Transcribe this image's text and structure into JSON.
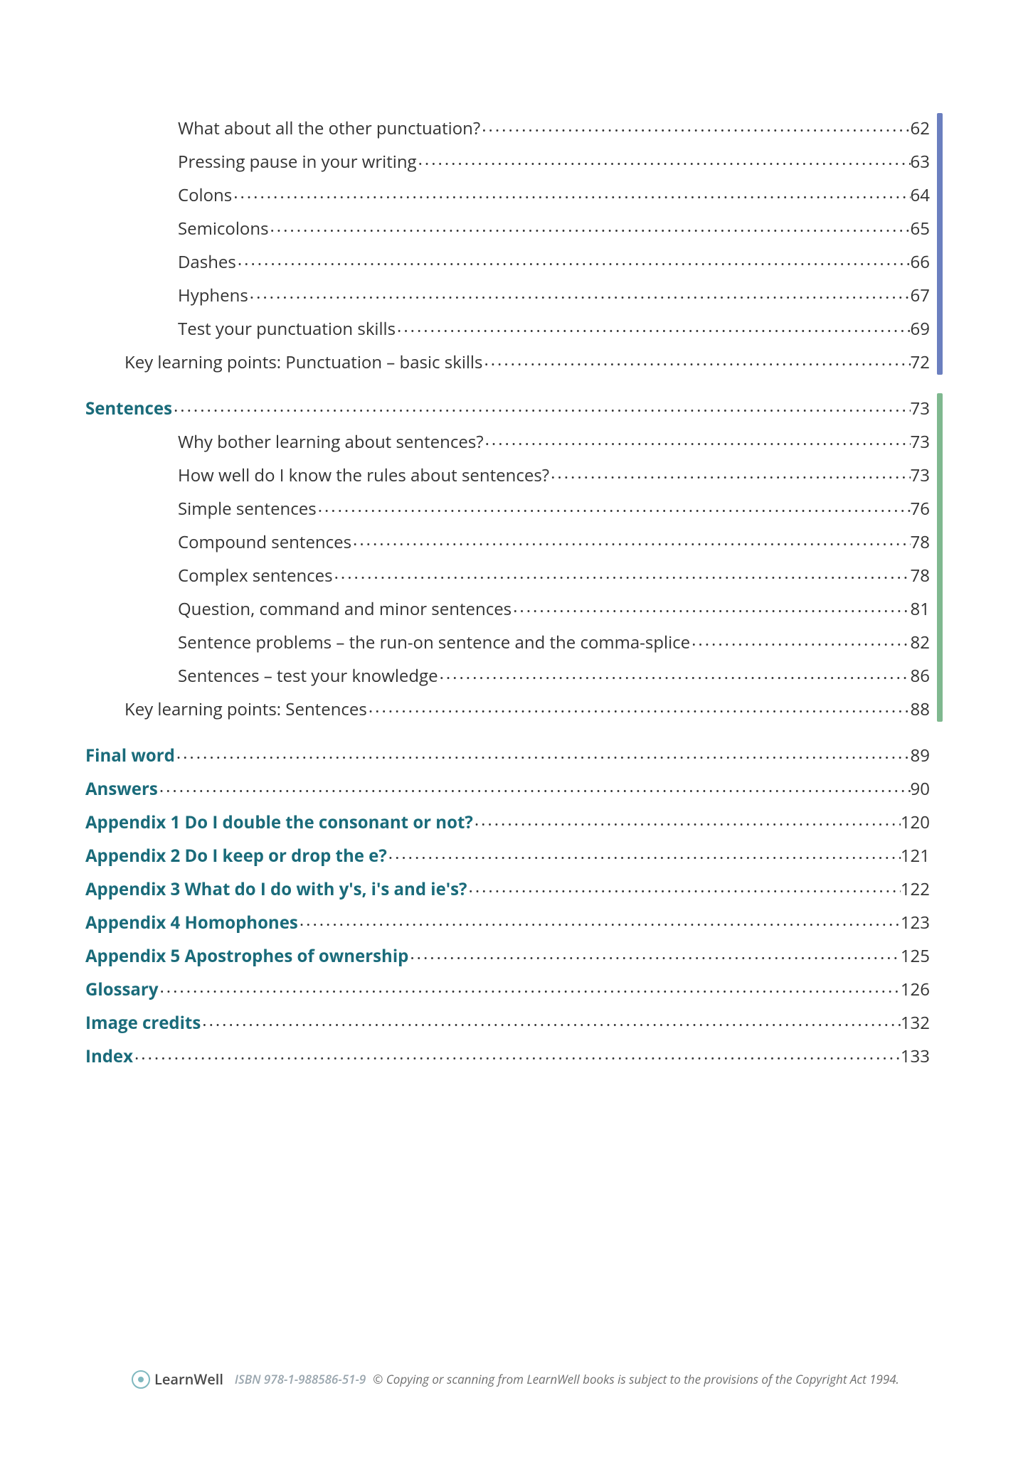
{
  "colors": {
    "bar_blue": "#6b7fbf",
    "bar_green": "#7fb88f",
    "heading_teal": "#1a6b7a",
    "body_text": "#333333",
    "footer_gray": "#9aa6ae"
  },
  "toc": {
    "group_punctuation": {
      "bar_color": "#6b7fbf",
      "items": [
        {
          "indent": 2,
          "label": "What about all the other punctuation?",
          "page": "62"
        },
        {
          "indent": 2,
          "label": "Pressing pause in your writing",
          "page": "63"
        },
        {
          "indent": 2,
          "label": "Colons",
          "page": "64"
        },
        {
          "indent": 2,
          "label": "Semicolons",
          "page": "65"
        },
        {
          "indent": 2,
          "label": "Dashes",
          "page": "66"
        },
        {
          "indent": 2,
          "label": "Hyphens",
          "page": "67"
        },
        {
          "indent": 2,
          "label": "Test your punctuation skills",
          "page": "69"
        },
        {
          "indent": 1,
          "label": "Key learning points: Punctuation – basic skills",
          "page": "72"
        }
      ]
    },
    "group_sentences": {
      "bar_color": "#7fb88f",
      "heading": {
        "label": "Sentences",
        "page": "73"
      },
      "items": [
        {
          "indent": 2,
          "label": "Why bother learning about sentences?",
          "page": "73"
        },
        {
          "indent": 2,
          "label": "How well do I know the rules about sentences?",
          "page": "73"
        },
        {
          "indent": 2,
          "label": "Simple sentences",
          "page": "76"
        },
        {
          "indent": 2,
          "label": "Compound sentences",
          "page": "78"
        },
        {
          "indent": 2,
          "label": "Complex sentences",
          "page": "78"
        },
        {
          "indent": 2,
          "label": "Question, command and minor sentences",
          "page": "81"
        },
        {
          "indent": 2,
          "label": "Sentence problems – the run-on sentence and the comma-splice",
          "page": "82"
        },
        {
          "indent": 2,
          "label": "Sentences – test your knowledge",
          "page": "86"
        },
        {
          "indent": 1,
          "label": "Key learning points: Sentences",
          "page": "88"
        }
      ]
    },
    "rest": [
      {
        "label": "Final word",
        "page": "89"
      },
      {
        "label": "Answers",
        "page": "90"
      },
      {
        "label": "Appendix 1  Do I double the consonant or not?",
        "page": "120"
      },
      {
        "label": "Appendix 2  Do I keep or drop the e?",
        "page": "121"
      },
      {
        "label": "Appendix 3  What do I do with y's, i's and ie's?",
        "page": "122"
      },
      {
        "label": "Appendix 4  Homophones",
        "page": "123"
      },
      {
        "label": "Appendix 5  Apostrophes of ownership",
        "page": "125"
      },
      {
        "label": "Glossary",
        "page": "126"
      },
      {
        "label": "Image credits",
        "page": "132"
      },
      {
        "label": "Index",
        "page": "133"
      }
    ]
  },
  "footer": {
    "brand": "LearnWell",
    "isbn": "ISBN 978-1-988586-51-9",
    "copyright": "© Copying or scanning from LearnWell books is subject to the provisions of the Copyright Act 1994."
  }
}
